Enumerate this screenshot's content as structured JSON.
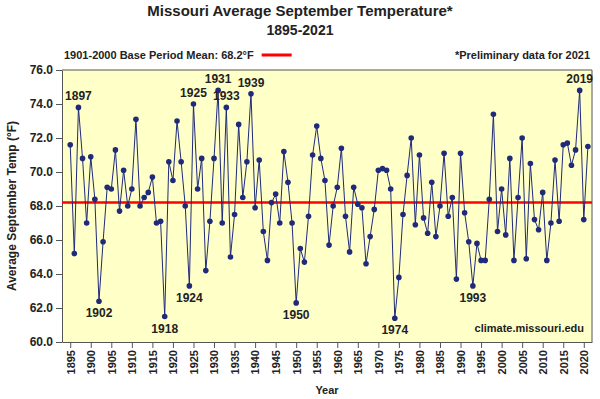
{
  "chart_data": {
    "type": "line",
    "title": "Missouri Average September Temperature*",
    "subtitle": "1895-2021",
    "x_label": "Year",
    "y_label": "Average September Temp (°F)",
    "note": "*Preliminary data for 2021",
    "source": "climate.missouri.edu",
    "color": "#1f2a7a",
    "marker": "circle",
    "line_style": "solid",
    "grid": false,
    "reference_line": {
      "label": "1901-2000 Base Period Mean: 68.2°F",
      "value": 68.2,
      "color": "#ff0000"
    },
    "x": [
      1895,
      1896,
      1897,
      1898,
      1899,
      1900,
      1901,
      1902,
      1903,
      1904,
      1905,
      1906,
      1907,
      1908,
      1909,
      1910,
      1911,
      1912,
      1913,
      1914,
      1915,
      1916,
      1917,
      1918,
      1919,
      1920,
      1921,
      1922,
      1923,
      1924,
      1925,
      1926,
      1927,
      1928,
      1929,
      1930,
      1931,
      1932,
      1933,
      1934,
      1935,
      1936,
      1937,
      1938,
      1939,
      1940,
      1941,
      1942,
      1943,
      1944,
      1945,
      1946,
      1947,
      1948,
      1949,
      1950,
      1951,
      1952,
      1953,
      1954,
      1955,
      1956,
      1957,
      1958,
      1959,
      1960,
      1961,
      1962,
      1963,
      1964,
      1965,
      1966,
      1967,
      1968,
      1969,
      1970,
      1971,
      1972,
      1973,
      1974,
      1975,
      1976,
      1977,
      1978,
      1979,
      1980,
      1981,
      1982,
      1983,
      1984,
      1985,
      1986,
      1987,
      1988,
      1989,
      1990,
      1991,
      1992,
      1993,
      1994,
      1995,
      1996,
      1997,
      1998,
      1999,
      2000,
      2001,
      2002,
      2003,
      2004,
      2005,
      2006,
      2007,
      2008,
      2009,
      2010,
      2011,
      2012,
      2013,
      2014,
      2015,
      2016,
      2017,
      2018,
      2019,
      2020,
      2021
    ],
    "values": [
      71.6,
      65.2,
      73.8,
      70.8,
      67.0,
      70.9,
      68.4,
      62.4,
      65.9,
      69.1,
      69.0,
      71.3,
      67.7,
      70.1,
      68.0,
      69.0,
      73.1,
      68.0,
      68.5,
      68.8,
      69.7,
      67.0,
      67.1,
      61.5,
      70.6,
      69.5,
      73.0,
      70.6,
      68.0,
      63.3,
      74.0,
      69.0,
      70.8,
      64.2,
      67.1,
      70.8,
      74.8,
      67.0,
      73.8,
      65.0,
      67.5,
      72.8,
      68.5,
      70.6,
      74.6,
      67.9,
      70.7,
      66.5,
      64.8,
      68.2,
      68.7,
      67.0,
      71.2,
      69.4,
      67.0,
      62.3,
      65.5,
      64.7,
      67.4,
      71.0,
      72.7,
      70.8,
      69.5,
      65.7,
      68.0,
      69.1,
      71.4,
      67.4,
      65.3,
      69.1,
      68.1,
      67.9,
      64.6,
      66.2,
      67.8,
      70.1,
      70.2,
      70.1,
      69.0,
      61.4,
      63.8,
      67.5,
      69.8,
      72.0,
      66.9,
      71.0,
      67.3,
      66.4,
      69.4,
      66.2,
      68.0,
      71.1,
      67.4,
      68.5,
      63.7,
      71.1,
      67.6,
      65.9,
      63.3,
      65.8,
      64.8,
      64.8,
      68.4,
      73.4,
      66.5,
      69.0,
      66.3,
      70.8,
      64.8,
      68.5,
      72.0,
      64.9,
      70.5,
      67.2,
      66.6,
      68.8,
      64.8,
      67.0,
      70.7,
      67.1,
      71.6,
      71.7,
      70.4,
      71.3,
      74.8,
      67.2,
      71.5
    ],
    "annotations": [
      {
        "text": "1897",
        "x": 1897
      },
      {
        "text": "1902",
        "x": 1902
      },
      {
        "text": "1918",
        "x": 1918
      },
      {
        "text": "1924",
        "x": 1924
      },
      {
        "text": "1925",
        "x": 1925
      },
      {
        "text": "1931",
        "x": 1931
      },
      {
        "text": "1933",
        "x": 1933
      },
      {
        "text": "1939",
        "x": 1939
      },
      {
        "text": "1950",
        "x": 1950
      },
      {
        "text": "1974",
        "x": 1974
      },
      {
        "text": "1993",
        "x": 1993
      },
      {
        "text": "2019",
        "x": 2019
      }
    ],
    "xlim": [
      1893,
      2022
    ],
    "xticks": [
      1895,
      1900,
      1905,
      1910,
      1915,
      1920,
      1925,
      1930,
      1935,
      1940,
      1945,
      1950,
      1955,
      1960,
      1965,
      1970,
      1975,
      1980,
      1985,
      1990,
      1995,
      2000,
      2005,
      2010,
      2015,
      2020
    ],
    "ylim": [
      60,
      76
    ],
    "yticks": [
      {
        "value": 60,
        "label": "60.0"
      },
      {
        "value": 62,
        "label": "62.0"
      },
      {
        "value": 64,
        "label": "64.0"
      },
      {
        "value": 66,
        "label": "66.0"
      },
      {
        "value": 68,
        "label": "68.0"
      },
      {
        "value": 70,
        "label": "70.0"
      },
      {
        "value": 72,
        "label": "72.0"
      },
      {
        "value": 74,
        "label": "74.0"
      },
      {
        "value": 76,
        "label": "76.0"
      }
    ]
  }
}
